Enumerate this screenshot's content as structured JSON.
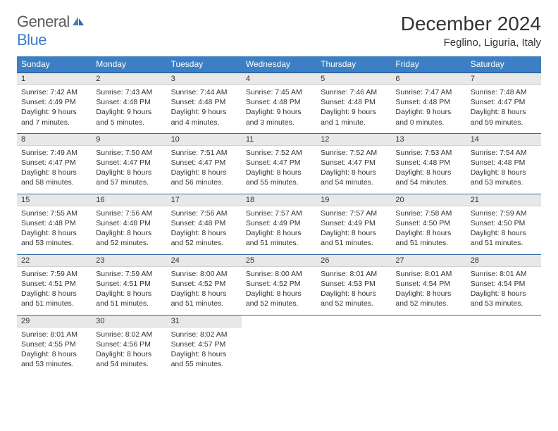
{
  "logo": {
    "general": "General",
    "blue": "Blue"
  },
  "title": "December 2024",
  "location": "Feglino, Liguria, Italy",
  "colors": {
    "header_bg": "#3d7fc4",
    "header_border": "#2e6aa8",
    "daynum_bg": "#e8e8e8",
    "text": "#333333",
    "bg": "#ffffff"
  },
  "weekdays": [
    "Sunday",
    "Monday",
    "Tuesday",
    "Wednesday",
    "Thursday",
    "Friday",
    "Saturday"
  ],
  "days": [
    {
      "n": 1,
      "sr": "7:42 AM",
      "ss": "4:49 PM",
      "dl": "9 hours and 7 minutes."
    },
    {
      "n": 2,
      "sr": "7:43 AM",
      "ss": "4:48 PM",
      "dl": "9 hours and 5 minutes."
    },
    {
      "n": 3,
      "sr": "7:44 AM",
      "ss": "4:48 PM",
      "dl": "9 hours and 4 minutes."
    },
    {
      "n": 4,
      "sr": "7:45 AM",
      "ss": "4:48 PM",
      "dl": "9 hours and 3 minutes."
    },
    {
      "n": 5,
      "sr": "7:46 AM",
      "ss": "4:48 PM",
      "dl": "9 hours and 1 minute."
    },
    {
      "n": 6,
      "sr": "7:47 AM",
      "ss": "4:48 PM",
      "dl": "9 hours and 0 minutes."
    },
    {
      "n": 7,
      "sr": "7:48 AM",
      "ss": "4:47 PM",
      "dl": "8 hours and 59 minutes."
    },
    {
      "n": 8,
      "sr": "7:49 AM",
      "ss": "4:47 PM",
      "dl": "8 hours and 58 minutes."
    },
    {
      "n": 9,
      "sr": "7:50 AM",
      "ss": "4:47 PM",
      "dl": "8 hours and 57 minutes."
    },
    {
      "n": 10,
      "sr": "7:51 AM",
      "ss": "4:47 PM",
      "dl": "8 hours and 56 minutes."
    },
    {
      "n": 11,
      "sr": "7:52 AM",
      "ss": "4:47 PM",
      "dl": "8 hours and 55 minutes."
    },
    {
      "n": 12,
      "sr": "7:52 AM",
      "ss": "4:47 PM",
      "dl": "8 hours and 54 minutes."
    },
    {
      "n": 13,
      "sr": "7:53 AM",
      "ss": "4:48 PM",
      "dl": "8 hours and 54 minutes."
    },
    {
      "n": 14,
      "sr": "7:54 AM",
      "ss": "4:48 PM",
      "dl": "8 hours and 53 minutes."
    },
    {
      "n": 15,
      "sr": "7:55 AM",
      "ss": "4:48 PM",
      "dl": "8 hours and 53 minutes."
    },
    {
      "n": 16,
      "sr": "7:56 AM",
      "ss": "4:48 PM",
      "dl": "8 hours and 52 minutes."
    },
    {
      "n": 17,
      "sr": "7:56 AM",
      "ss": "4:48 PM",
      "dl": "8 hours and 52 minutes."
    },
    {
      "n": 18,
      "sr": "7:57 AM",
      "ss": "4:49 PM",
      "dl": "8 hours and 51 minutes."
    },
    {
      "n": 19,
      "sr": "7:57 AM",
      "ss": "4:49 PM",
      "dl": "8 hours and 51 minutes."
    },
    {
      "n": 20,
      "sr": "7:58 AM",
      "ss": "4:50 PM",
      "dl": "8 hours and 51 minutes."
    },
    {
      "n": 21,
      "sr": "7:59 AM",
      "ss": "4:50 PM",
      "dl": "8 hours and 51 minutes."
    },
    {
      "n": 22,
      "sr": "7:59 AM",
      "ss": "4:51 PM",
      "dl": "8 hours and 51 minutes."
    },
    {
      "n": 23,
      "sr": "7:59 AM",
      "ss": "4:51 PM",
      "dl": "8 hours and 51 minutes."
    },
    {
      "n": 24,
      "sr": "8:00 AM",
      "ss": "4:52 PM",
      "dl": "8 hours and 51 minutes."
    },
    {
      "n": 25,
      "sr": "8:00 AM",
      "ss": "4:52 PM",
      "dl": "8 hours and 52 minutes."
    },
    {
      "n": 26,
      "sr": "8:01 AM",
      "ss": "4:53 PM",
      "dl": "8 hours and 52 minutes."
    },
    {
      "n": 27,
      "sr": "8:01 AM",
      "ss": "4:54 PM",
      "dl": "8 hours and 52 minutes."
    },
    {
      "n": 28,
      "sr": "8:01 AM",
      "ss": "4:54 PM",
      "dl": "8 hours and 53 minutes."
    },
    {
      "n": 29,
      "sr": "8:01 AM",
      "ss": "4:55 PM",
      "dl": "8 hours and 53 minutes."
    },
    {
      "n": 30,
      "sr": "8:02 AM",
      "ss": "4:56 PM",
      "dl": "8 hours and 54 minutes."
    },
    {
      "n": 31,
      "sr": "8:02 AM",
      "ss": "4:57 PM",
      "dl": "8 hours and 55 minutes."
    }
  ],
  "labels": {
    "sunrise": "Sunrise:",
    "sunset": "Sunset:",
    "daylight": "Daylight:"
  }
}
